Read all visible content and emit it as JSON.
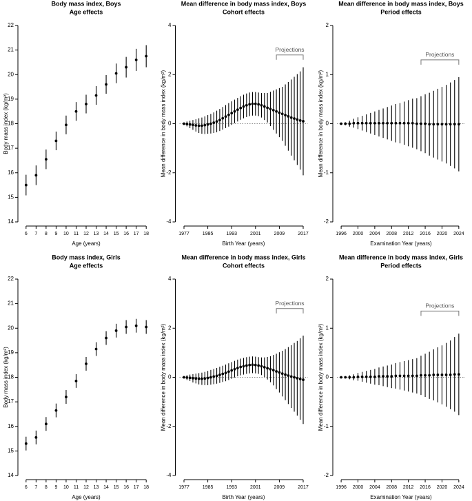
{
  "chart_data": [
    {
      "type": "errorbar",
      "title": "Body mass index, Boys",
      "subtitle": "Age effects",
      "xlabel": "Age (years)",
      "ylabel": "Body mass index (kg/m²)",
      "x": [
        6,
        7,
        8,
        9,
        10,
        11,
        12,
        13,
        14,
        15,
        16,
        17,
        18
      ],
      "values": [
        15.5,
        15.9,
        16.55,
        17.3,
        17.95,
        18.5,
        18.8,
        19.15,
        19.6,
        20.05,
        20.3,
        20.6,
        20.75
      ],
      "errors": [
        0.42,
        0.4,
        0.4,
        0.38,
        0.38,
        0.38,
        0.38,
        0.38,
        0.38,
        0.4,
        0.42,
        0.45,
        0.45
      ],
      "xlim": [
        5.6,
        18.4
      ],
      "ylim": [
        14,
        22
      ],
      "xticks": [
        6,
        7,
        8,
        9,
        10,
        11,
        12,
        13,
        14,
        15,
        16,
        17,
        18
      ],
      "yticks": [
        14,
        15,
        16,
        17,
        18,
        19,
        20,
        21,
        22
      ],
      "color": "#000000"
    },
    {
      "type": "errorbar",
      "title": "Mean difference in body mass index, Boys",
      "subtitle": "Cohort effects",
      "xlabel": "Birth Year (years)",
      "ylabel": "Mean difference in body mass index (kg/m²)",
      "x": [
        1977,
        1978,
        1979,
        1980,
        1981,
        1982,
        1983,
        1984,
        1985,
        1986,
        1987,
        1988,
        1989,
        1990,
        1991,
        1992,
        1993,
        1994,
        1995,
        1996,
        1997,
        1998,
        1999,
        2000,
        2001,
        2002,
        2003,
        2004,
        2005,
        2006,
        2007,
        2008,
        2009,
        2010,
        2011,
        2012,
        2013,
        2014,
        2015,
        2016,
        2017
      ],
      "values": [
        0,
        -0.01,
        -0.03,
        -0.05,
        -0.07,
        -0.08,
        -0.08,
        -0.06,
        -0.03,
        0,
        0.04,
        0.09,
        0.15,
        0.22,
        0.29,
        0.36,
        0.43,
        0.5,
        0.57,
        0.64,
        0.7,
        0.75,
        0.79,
        0.81,
        0.81,
        0.79,
        0.75,
        0.7,
        0.65,
        0.6,
        0.55,
        0.5,
        0.45,
        0.4,
        0.35,
        0.3,
        0.25,
        0.21,
        0.17,
        0.13,
        0.1
      ],
      "errors": [
        0.05,
        0.1,
        0.15,
        0.2,
        0.25,
        0.3,
        0.33,
        0.36,
        0.38,
        0.4,
        0.42,
        0.44,
        0.45,
        0.46,
        0.47,
        0.48,
        0.48,
        0.48,
        0.48,
        0.48,
        0.48,
        0.48,
        0.48,
        0.48,
        0.48,
        0.48,
        0.5,
        0.55,
        0.6,
        0.7,
        0.8,
        0.9,
        1.0,
        1.1,
        1.25,
        1.4,
        1.55,
        1.7,
        1.85,
        2.0,
        2.2
      ],
      "xlim": [
        1975.5,
        2018.5
      ],
      "ylim": [
        -4,
        4
      ],
      "xticks": [
        1977,
        1985,
        1993,
        2001,
        2009,
        2017
      ],
      "yticks": [
        -4,
        -2,
        0,
        2,
        4
      ],
      "reference_line": 0,
      "color": "#000000",
      "projection": {
        "label": "Projections",
        "start": 2008,
        "end": 2017,
        "y": 2.8
      }
    },
    {
      "type": "errorbar",
      "title": "Mean difference in body mass index, Boys",
      "subtitle": "Period effects",
      "xlabel": "Examination Year (years)",
      "ylabel": "Mean difference in body mass index (kg/m²)",
      "x": [
        1996,
        1997,
        1998,
        1999,
        2000,
        2001,
        2002,
        2003,
        2004,
        2005,
        2006,
        2007,
        2008,
        2009,
        2010,
        2011,
        2012,
        2013,
        2014,
        2015,
        2016,
        2017,
        2018,
        2019,
        2020,
        2021,
        2022,
        2023,
        2024
      ],
      "values": [
        0,
        0,
        0,
        0.01,
        0.01,
        0.01,
        0.01,
        0.01,
        0.01,
        0.01,
        0.01,
        0.01,
        0.01,
        0.01,
        0.01,
        0.01,
        0.01,
        0.01,
        0,
        0,
        0,
        -0.01,
        -0.01,
        -0.01,
        -0.01,
        -0.01,
        -0.01,
        -0.01,
        -0.01
      ],
      "errors": [
        0.01,
        0.03,
        0.06,
        0.09,
        0.12,
        0.15,
        0.18,
        0.21,
        0.24,
        0.27,
        0.3,
        0.33,
        0.36,
        0.39,
        0.41,
        0.44,
        0.47,
        0.5,
        0.52,
        0.56,
        0.6,
        0.64,
        0.68,
        0.72,
        0.76,
        0.8,
        0.85,
        0.9,
        0.96
      ],
      "xlim": [
        1995,
        2025.5
      ],
      "ylim": [
        -2,
        2
      ],
      "xticks": [
        1996,
        2000,
        2004,
        2008,
        2012,
        2016,
        2020,
        2024
      ],
      "yticks": [
        -2,
        -1,
        0,
        1,
        2
      ],
      "reference_line": 0,
      "color": "#000000",
      "projection": {
        "label": "Projections",
        "start": 2015,
        "end": 2024,
        "y": 1.3
      }
    },
    {
      "type": "errorbar",
      "title": "Body mass index, Girls",
      "subtitle": "Age effects",
      "xlabel": "Age (years)",
      "ylabel": "Body mass index (kg/m²)",
      "x": [
        6,
        7,
        8,
        9,
        10,
        11,
        12,
        13,
        14,
        15,
        16,
        17,
        18
      ],
      "values": [
        15.3,
        15.55,
        16.1,
        16.65,
        17.2,
        17.85,
        18.55,
        19.15,
        19.6,
        19.9,
        20.05,
        20.1,
        20.05
      ],
      "errors": [
        0.28,
        0.28,
        0.28,
        0.28,
        0.28,
        0.28,
        0.28,
        0.28,
        0.28,
        0.28,
        0.28,
        0.28,
        0.28
      ],
      "xlim": [
        5.6,
        18.4
      ],
      "ylim": [
        14,
        22
      ],
      "xticks": [
        6,
        7,
        8,
        9,
        10,
        11,
        12,
        13,
        14,
        15,
        16,
        17,
        18
      ],
      "yticks": [
        14,
        15,
        16,
        17,
        18,
        19,
        20,
        21,
        22
      ],
      "color": "#000000"
    },
    {
      "type": "errorbar",
      "title": "Mean difference in body mass index, Girls",
      "subtitle": "Cohort effects",
      "xlabel": "Birth Year (years)",
      "ylabel": "Mean difference in body mass index (kg/m²)",
      "x": [
        1977,
        1978,
        1979,
        1980,
        1981,
        1982,
        1983,
        1984,
        1985,
        1986,
        1987,
        1988,
        1989,
        1990,
        1991,
        1992,
        1993,
        1994,
        1995,
        1996,
        1997,
        1998,
        1999,
        2000,
        2001,
        2002,
        2003,
        2004,
        2005,
        2006,
        2007,
        2008,
        2009,
        2010,
        2011,
        2012,
        2013,
        2014,
        2015,
        2016,
        2017
      ],
      "values": [
        0,
        -0.01,
        -0.02,
        -0.04,
        -0.05,
        -0.06,
        -0.06,
        -0.05,
        -0.03,
        0,
        0.03,
        0.06,
        0.1,
        0.14,
        0.18,
        0.23,
        0.28,
        0.33,
        0.38,
        0.42,
        0.45,
        0.48,
        0.5,
        0.51,
        0.5,
        0.48,
        0.45,
        0.41,
        0.37,
        0.33,
        0.29,
        0.24,
        0.2,
        0.15,
        0.11,
        0.07,
        0.03,
        0,
        -0.04,
        -0.07,
        -0.1
      ],
      "errors": [
        0.05,
        0.1,
        0.13,
        0.17,
        0.2,
        0.23,
        0.25,
        0.27,
        0.29,
        0.3,
        0.31,
        0.32,
        0.33,
        0.33,
        0.34,
        0.34,
        0.34,
        0.34,
        0.34,
        0.34,
        0.34,
        0.34,
        0.34,
        0.34,
        0.34,
        0.34,
        0.36,
        0.4,
        0.46,
        0.53,
        0.62,
        0.72,
        0.82,
        0.93,
        1.04,
        1.16,
        1.28,
        1.4,
        1.52,
        1.66,
        1.8
      ],
      "xlim": [
        1975.5,
        2018.5
      ],
      "ylim": [
        -4,
        4
      ],
      "xticks": [
        1977,
        1985,
        1993,
        2001,
        2009,
        2017
      ],
      "yticks": [
        -4,
        -2,
        0,
        2,
        4
      ],
      "reference_line": 0,
      "color": "#000000",
      "projection": {
        "label": "Projections",
        "start": 2008,
        "end": 2017,
        "y": 2.8
      }
    },
    {
      "type": "errorbar",
      "title": "Mean difference in body mass index, Girls",
      "subtitle": "Period effects",
      "xlabel": "Examination Year (years)",
      "ylabel": "Mean difference in body mass index (kg/m²)",
      "x": [
        1996,
        1997,
        1998,
        1999,
        2000,
        2001,
        2002,
        2003,
        2004,
        2005,
        2006,
        2007,
        2008,
        2009,
        2010,
        2011,
        2012,
        2013,
        2014,
        2015,
        2016,
        2017,
        2018,
        2019,
        2020,
        2021,
        2022,
        2023,
        2024
      ],
      "values": [
        0,
        0,
        0,
        0,
        0.01,
        0.01,
        0.01,
        0.01,
        0.01,
        0.02,
        0.02,
        0.02,
        0.02,
        0.03,
        0.03,
        0.03,
        0.03,
        0.03,
        0.03,
        0.04,
        0.04,
        0.04,
        0.05,
        0.05,
        0.05,
        0.05,
        0.05,
        0.06,
        0.06
      ],
      "errors": [
        0.01,
        0.02,
        0.04,
        0.06,
        0.08,
        0.1,
        0.12,
        0.14,
        0.16,
        0.18,
        0.2,
        0.22,
        0.24,
        0.26,
        0.28,
        0.3,
        0.32,
        0.34,
        0.36,
        0.4,
        0.44,
        0.48,
        0.52,
        0.56,
        0.6,
        0.65,
        0.7,
        0.76,
        0.83
      ],
      "xlim": [
        1995,
        2025.5
      ],
      "ylim": [
        -2,
        2
      ],
      "xticks": [
        1996,
        2000,
        2004,
        2008,
        2012,
        2016,
        2020,
        2024
      ],
      "yticks": [
        -2,
        -1,
        0,
        1,
        2
      ],
      "reference_line": 0,
      "color": "#000000",
      "projection": {
        "label": "Projections",
        "start": 2015,
        "end": 2024,
        "y": 1.35
      }
    }
  ]
}
